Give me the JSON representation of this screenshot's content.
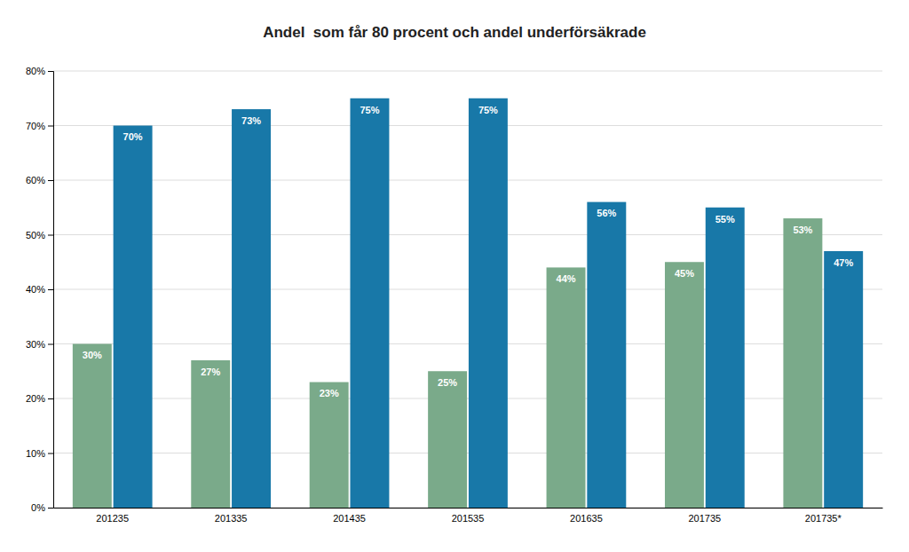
{
  "chart_data": {
    "type": "bar",
    "title": "Andel  som får 80 procent och andel underförsäkrade",
    "categories": [
      "201235",
      "201335",
      "201435",
      "201535",
      "201635",
      "201735",
      "201735*"
    ],
    "series": [
      {
        "color": "#7aaa8a",
        "values": [
          0.3,
          0.27,
          0.23,
          0.25,
          0.44,
          0.45,
          0.53
        ],
        "value_labels": [
          "30%",
          "27%",
          "23%",
          "25%",
          "44%",
          "45%",
          "53%"
        ]
      },
      {
        "color": "#1878a8",
        "values": [
          0.7,
          0.73,
          0.75,
          0.75,
          0.56,
          0.55,
          0.47
        ],
        "value_labels": [
          "70%",
          "73%",
          "75%",
          "75%",
          "56%",
          "55%",
          "47%"
        ]
      }
    ],
    "ylim": [
      0,
      0.8
    ],
    "yticks": [
      {
        "value": 0.0,
        "label": "0%"
      },
      {
        "value": 0.1,
        "label": "10%"
      },
      {
        "value": 0.2,
        "label": "20%"
      },
      {
        "value": 0.3,
        "label": "30%"
      },
      {
        "value": 0.4,
        "label": "40%"
      },
      {
        "value": 0.5,
        "label": "50%"
      },
      {
        "value": 0.6,
        "label": "60%"
      },
      {
        "value": 0.7,
        "label": "70%"
      },
      {
        "value": 0.8,
        "label": "80%"
      }
    ],
    "grid": true,
    "data_labels": true
  }
}
